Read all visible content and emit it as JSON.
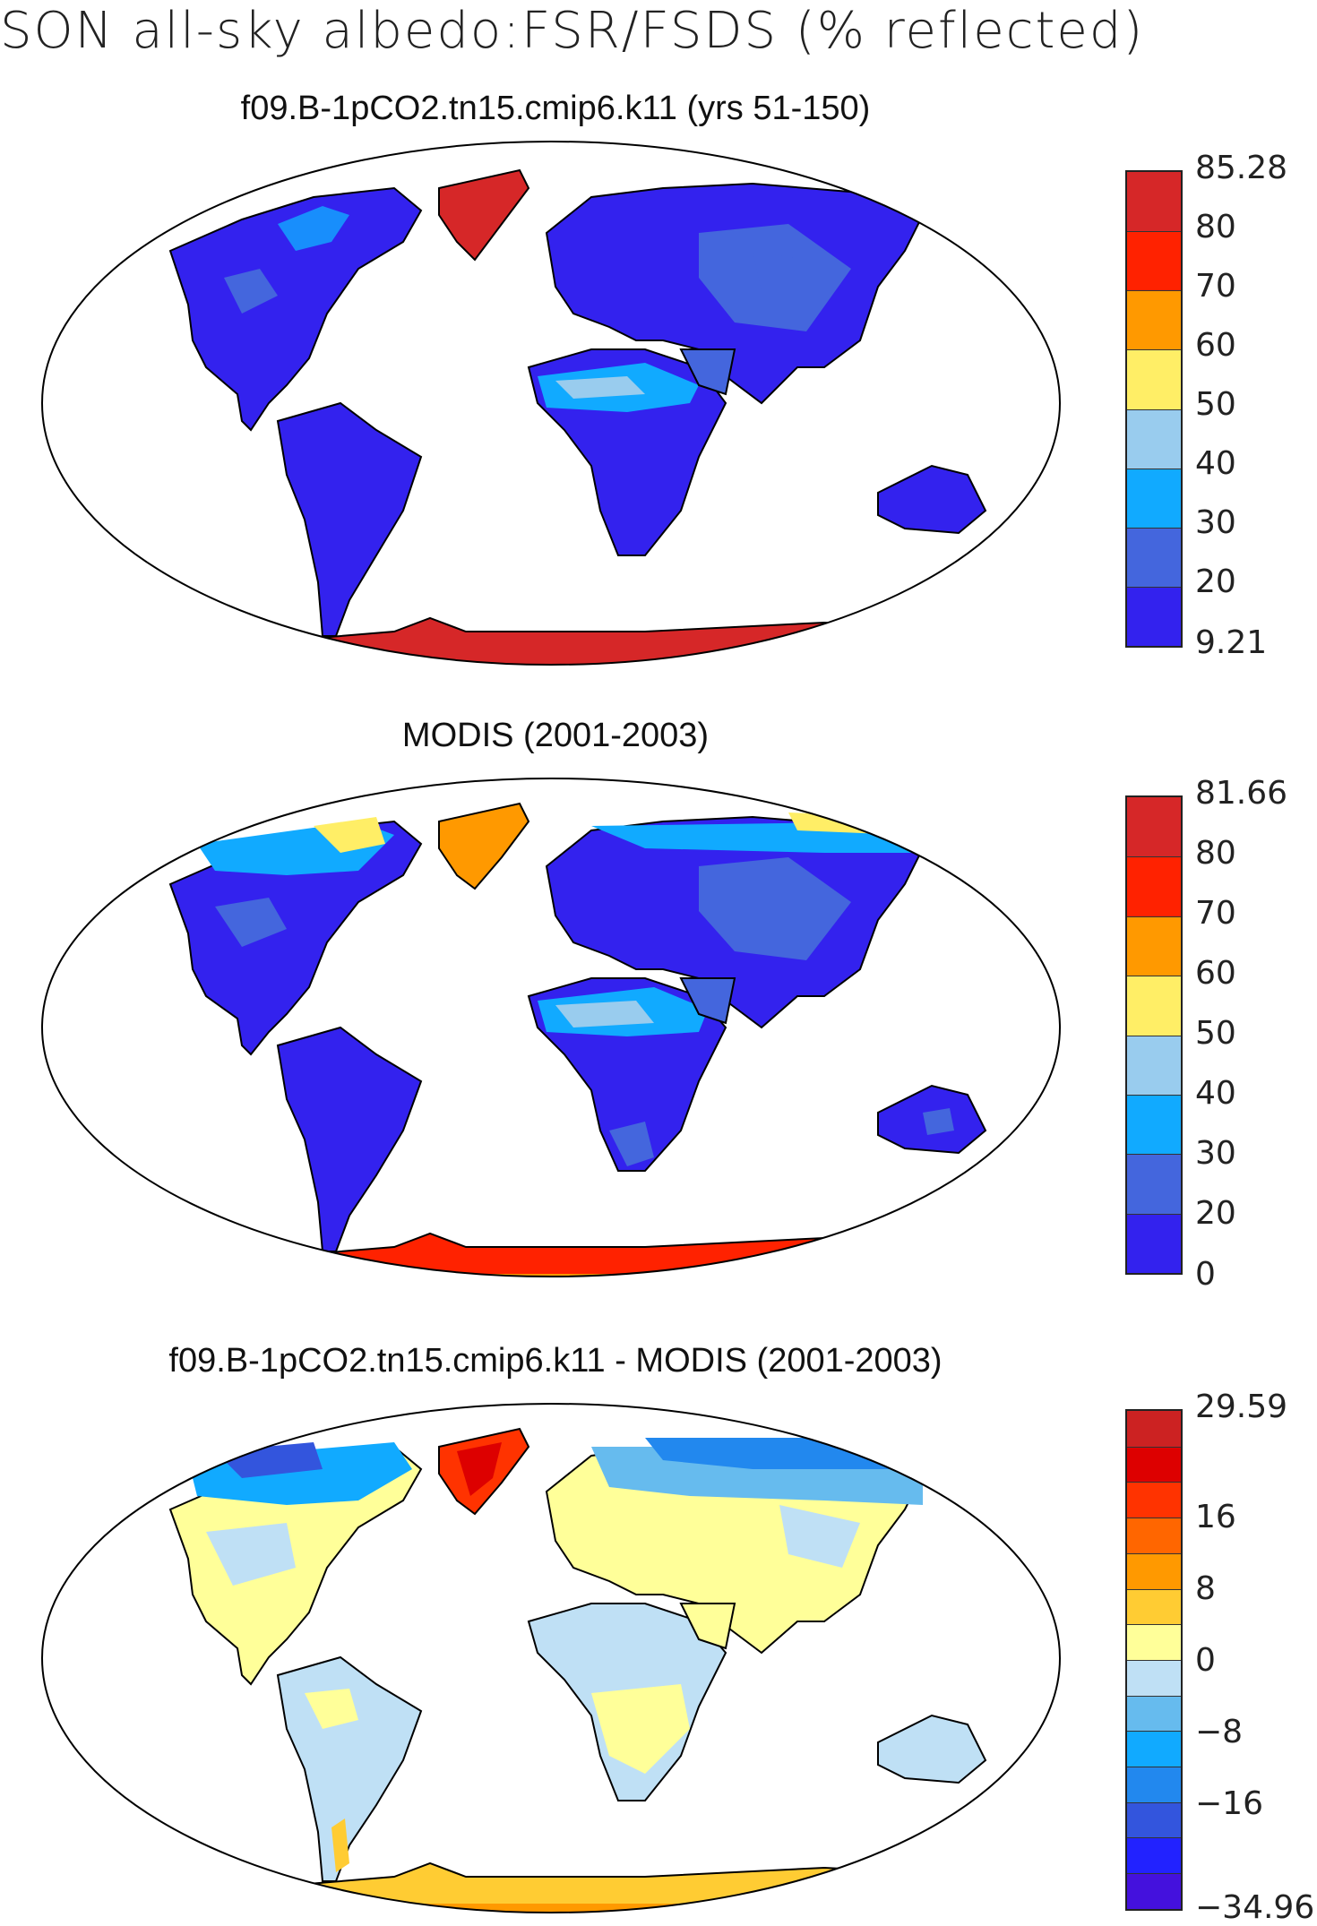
{
  "title": "SON all-sky albedo:FSR/FSDS (% reflected)",
  "panels": [
    {
      "title": "f09.B-1pCO2.tn15.cmip6.k11 (yrs 51-150)",
      "colorbar": {
        "colors": [
          "#d62728",
          "#ff2200",
          "#ff9900",
          "#ffee66",
          "#99ccee",
          "#11aaff",
          "#4466dd",
          "#3322ee"
        ],
        "labels": [
          "85.28",
          "80",
          "70",
          "60",
          "50",
          "40",
          "30",
          "20",
          "9.21"
        ]
      }
    },
    {
      "title": "MODIS (2001-2003)",
      "colorbar": {
        "colors": [
          "#d62728",
          "#ff2200",
          "#ff9900",
          "#ffee66",
          "#99ccee",
          "#11aaff",
          "#4466dd",
          "#3322ee"
        ],
        "labels": [
          "81.66",
          "80",
          "70",
          "60",
          "50",
          "40",
          "30",
          "20",
          "0"
        ]
      }
    },
    {
      "title": "f09.B-1pCO2.tn15.cmip6.k11 - MODIS (2001-2003)",
      "colorbar": {
        "colors": [
          "#cc2222",
          "#dd0000",
          "#ff3300",
          "#ff6600",
          "#ff9900",
          "#ffcc33",
          "#ffff99",
          "#bfe0f5",
          "#66bbee",
          "#11aaff",
          "#2288ee",
          "#3355dd",
          "#2222ff",
          "#4411dd"
        ],
        "labels": [
          "29.59",
          "16",
          "8",
          "0",
          "−8",
          "−16",
          "−34.96"
        ]
      }
    }
  ]
}
